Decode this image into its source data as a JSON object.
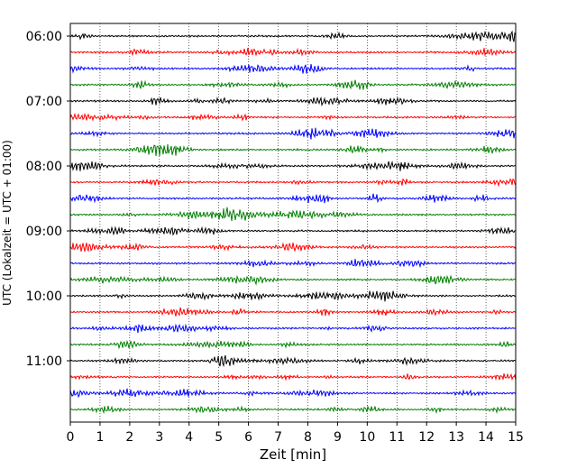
{
  "chart_data": {
    "type": "line",
    "title": "",
    "xlabel": "Zeit  [min]",
    "ylabel": "UTC (Lokalzeit = UTC + 01:00)",
    "xlim": [
      0,
      15
    ],
    "x_ticks": [
      "0",
      "1",
      "2",
      "3",
      "4",
      "5",
      "6",
      "7",
      "8",
      "9",
      "10",
      "11",
      "12",
      "13",
      "14",
      "15"
    ],
    "y_ticks": [
      "06:00",
      "07:00",
      "08:00",
      "09:00",
      "10:00",
      "11:00"
    ],
    "grid": "vertical dotted",
    "trace_interval_minutes": 15,
    "trace_start": "06:00",
    "trace_count": 24,
    "trace_colors": [
      "#000000",
      "#ff0000",
      "#0000ff",
      "#007f00"
    ]
  }
}
